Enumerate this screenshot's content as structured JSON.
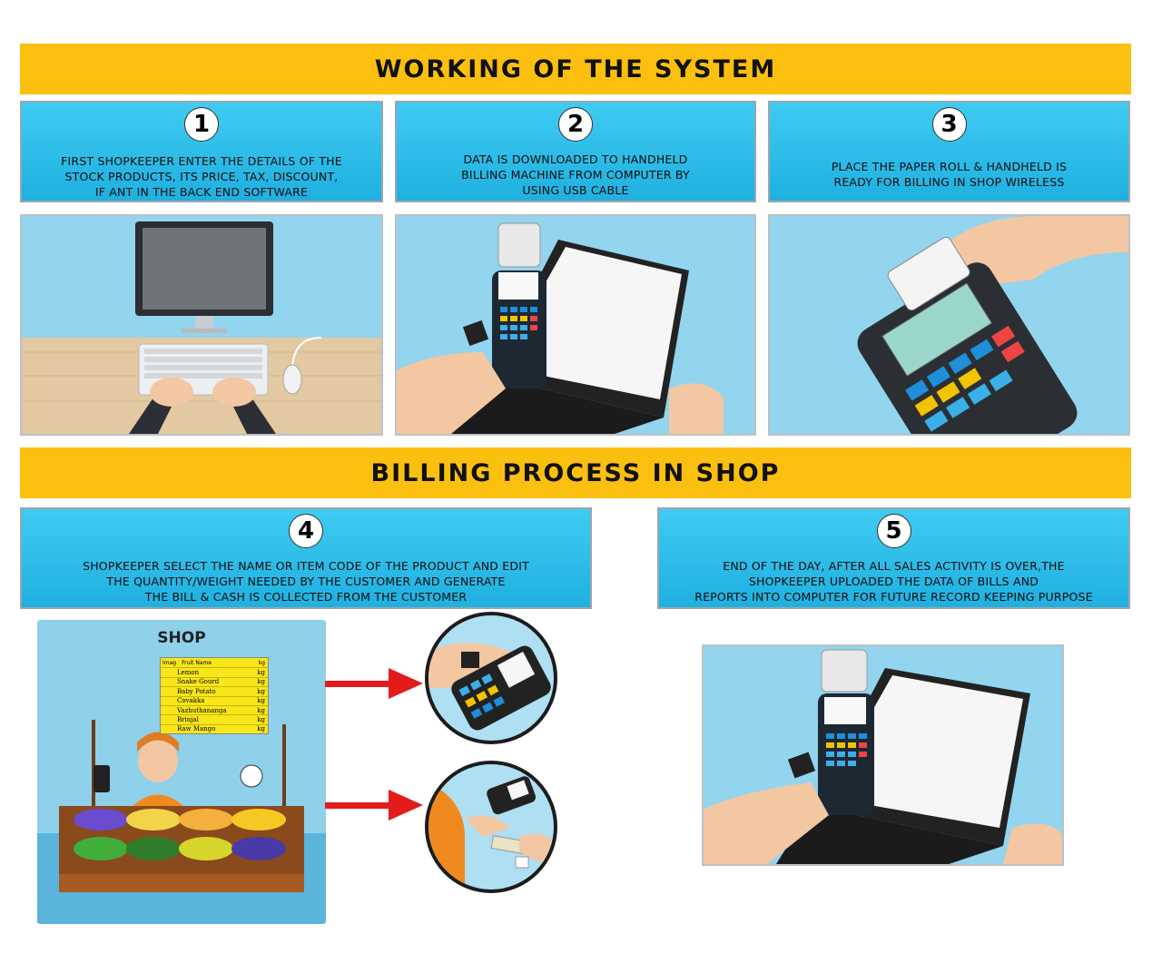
{
  "banners": {
    "top": "WORKING OF THE SYSTEM",
    "middle": "BILLING PROCESS IN SHOP"
  },
  "steps": [
    {
      "number": "1",
      "text": "FIRST SHOPKEEPER ENTER THE DETAILS OF THE\nSTOCK PRODUCTS, ITS PRICE, TAX, DISCOUNT,\nIF ANT IN THE BACK END SOFTWARE"
    },
    {
      "number": "2",
      "text": "DATA IS DOWNLOADED TO HANDHELD\nBILLING MACHINE FROM COMPUTER BY\nUSING USB CABLE"
    },
    {
      "number": "3",
      "text": "PLACE THE PAPER ROLL & HANDHELD IS\nREADY FOR BILLING IN SHOP WIRELESS"
    },
    {
      "number": "4",
      "text": "SHOPKEEPER SELECT THE NAME OR ITEM CODE OF THE PRODUCT AND EDIT\nTHE QUANTITY/WEIGHT NEEDED BY THE CUSTOMER AND GENERATE\nTHE BILL & CASH IS COLLECTED FROM THE CUSTOMER"
    },
    {
      "number": "5",
      "text": "END OF THE DAY, AFTER ALL SALES ACTIVITY IS OVER,THE\nSHOPKEEPER UPLOADED THE DATA OF BILLS AND\nREPORTS INTO COMPUTER FOR FUTURE RECORD KEEPING PURPOSE"
    }
  ],
  "shop": {
    "title": "SHOP",
    "sign_header": {
      "img": "Imag",
      "name": "Fruit Name",
      "unit": "kg"
    },
    "sign_items": [
      {
        "name": "Lemon",
        "unit": "kg"
      },
      {
        "name": "Snake Gourd",
        "unit": "kg"
      },
      {
        "name": "Baby Potato",
        "unit": "kg"
      },
      {
        "name": "Covakka",
        "unit": "kg"
      },
      {
        "name": "Vazhuthananga",
        "unit": "kg"
      },
      {
        "name": "Brinjal",
        "unit": "kg"
      },
      {
        "name": "Raw Mango",
        "unit": "kg"
      }
    ]
  },
  "colors": {
    "banner": "#fbbf10",
    "step_box": "#29bdeb",
    "panel_sky": "#8ed3ef",
    "arrow": "#e31b1b"
  }
}
